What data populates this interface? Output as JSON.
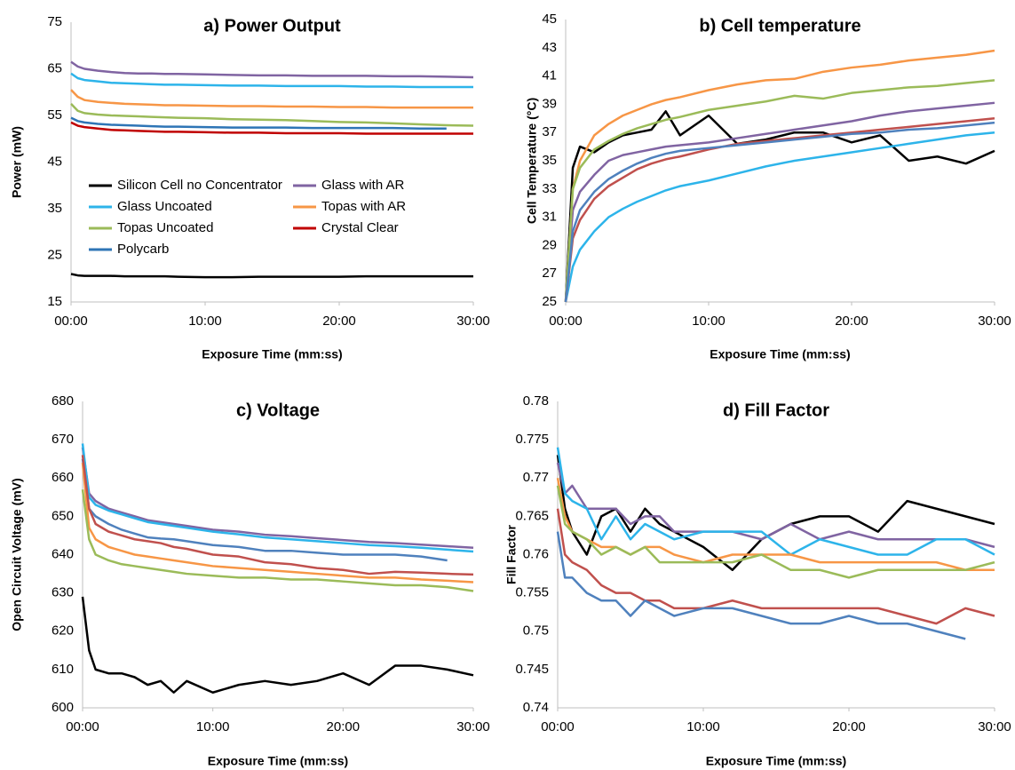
{
  "chart_data": [
    {
      "type": "line",
      "title": "a) Power Output",
      "x_label": "Exposure Time (mm:ss)",
      "y_label": "Power (mW)",
      "x": [
        0,
        0.5,
        1,
        2,
        3,
        4,
        5,
        6,
        7,
        8,
        10,
        12,
        14,
        16,
        18,
        20,
        22,
        24,
        26,
        28,
        30
      ],
      "xlim": [
        0,
        30
      ],
      "xticks": [
        {
          "value": 0,
          "label": "00:00"
        },
        {
          "value": 10,
          "label": "10:00"
        },
        {
          "value": 20,
          "label": "20:00"
        },
        {
          "value": 30,
          "label": "30:00"
        }
      ],
      "ylim": [
        15,
        75
      ],
      "yticks": [
        15,
        25,
        35,
        45,
        55,
        65,
        75
      ],
      "legend": "left",
      "series": [
        {
          "name": "Silicon Cell no Concentrator",
          "color": "#000000",
          "values": [
            21,
            20.7,
            20.6,
            20.6,
            20.6,
            20.5,
            20.5,
            20.5,
            20.5,
            20.4,
            20.3,
            20.3,
            20.4,
            20.4,
            20.4,
            20.4,
            20.5,
            20.5,
            20.5,
            20.5,
            20.5
          ]
        },
        {
          "name": "Glass with AR",
          "color": "#8064a2",
          "values": [
            66.5,
            65.5,
            65,
            64.6,
            64.3,
            64.1,
            64,
            64,
            63.9,
            63.9,
            63.8,
            63.7,
            63.6,
            63.6,
            63.5,
            63.5,
            63.5,
            63.4,
            63.4,
            63.3,
            63.2
          ]
        },
        {
          "name": "Glass Uncoated",
          "color": "#2db4ea",
          "values": [
            64,
            63,
            62.6,
            62.3,
            62,
            61.9,
            61.8,
            61.7,
            61.6,
            61.6,
            61.5,
            61.4,
            61.4,
            61.3,
            61.3,
            61.3,
            61.2,
            61.2,
            61.1,
            61.1,
            61.1
          ]
        },
        {
          "name": "Topas with AR",
          "color": "#f79646",
          "values": [
            60.5,
            59,
            58.3,
            57.9,
            57.7,
            57.5,
            57.4,
            57.3,
            57.2,
            57.2,
            57.1,
            57,
            57,
            56.9,
            56.9,
            56.8,
            56.8,
            56.7,
            56.7,
            56.7,
            56.7
          ]
        },
        {
          "name": "Topas Uncoated",
          "color": "#9bbb59",
          "values": [
            57.5,
            56,
            55.5,
            55.2,
            55,
            54.9,
            54.8,
            54.7,
            54.6,
            54.5,
            54.4,
            54.2,
            54.1,
            54,
            53.8,
            53.6,
            53.5,
            53.3,
            53.1,
            52.9,
            52.8
          ]
        },
        {
          "name": "Crystal Clear",
          "color": "#c00000",
          "values": [
            53.5,
            52.8,
            52.5,
            52.2,
            51.9,
            51.8,
            51.7,
            51.6,
            51.5,
            51.5,
            51.4,
            51.3,
            51.3,
            51.2,
            51.2,
            51.2,
            51.1,
            51.1,
            51.1,
            51.1,
            51.1
          ]
        },
        {
          "name": "Polycarb",
          "color": "#2e75b6",
          "values": [
            54.5,
            53.8,
            53.5,
            53.2,
            53,
            52.9,
            52.8,
            52.7,
            52.6,
            52.6,
            52.5,
            52.4,
            52.4,
            52.4,
            52.3,
            52.3,
            52.3,
            52.3,
            52.2,
            52.2,
            null
          ]
        }
      ]
    },
    {
      "type": "line",
      "title": "b) Cell temperature",
      "x_label": "Exposure Time (mm:ss)",
      "y_label": "Cell Temperature  (°C)",
      "x": [
        0,
        0.5,
        1,
        2,
        3,
        4,
        5,
        6,
        7,
        8,
        10,
        12,
        14,
        16,
        18,
        20,
        22,
        24,
        26,
        28,
        30
      ],
      "xlim": [
        0,
        30
      ],
      "xticks": [
        {
          "value": 0,
          "label": "00:00"
        },
        {
          "value": 10,
          "label": "10:00"
        },
        {
          "value": 20,
          "label": "20:00"
        },
        {
          "value": 30,
          "label": "30:00"
        }
      ],
      "ylim": [
        25,
        45
      ],
      "yticks": [
        25,
        27,
        29,
        31,
        33,
        35,
        37,
        39,
        41,
        43,
        45
      ],
      "series": [
        {
          "color": "#000000",
          "values": [
            25,
            34.5,
            36,
            35.6,
            36.3,
            36.8,
            37,
            37.2,
            38.5,
            36.8,
            38.2,
            36.2,
            36.5,
            37,
            37,
            36.3,
            36.8,
            35,
            35.3,
            34.8,
            35.7
          ]
        },
        {
          "color": "#8064a2",
          "values": [
            25,
            31.5,
            32.8,
            34,
            35,
            35.4,
            35.6,
            35.8,
            36,
            36.1,
            36.3,
            36.6,
            36.9,
            37.2,
            37.5,
            37.8,
            38.2,
            38.5,
            38.7,
            38.9,
            39.1
          ]
        },
        {
          "color": "#2db4ea",
          "values": [
            25,
            27.5,
            28.7,
            30,
            31,
            31.6,
            32.1,
            32.5,
            32.9,
            33.2,
            33.6,
            34.1,
            34.6,
            35,
            35.3,
            35.6,
            35.9,
            36.2,
            36.5,
            36.8,
            37
          ]
        },
        {
          "color": "#f79646",
          "values": [
            25,
            33,
            35,
            36.8,
            37.6,
            38.2,
            38.6,
            39,
            39.3,
            39.5,
            40,
            40.4,
            40.7,
            40.8,
            41.3,
            41.6,
            41.8,
            42.1,
            42.3,
            42.5,
            42.8
          ]
        },
        {
          "color": "#9bbb59",
          "values": [
            25,
            33,
            34.5,
            35.8,
            36.4,
            36.9,
            37.3,
            37.6,
            37.9,
            38.1,
            38.6,
            38.9,
            39.2,
            39.6,
            39.4,
            39.8,
            40,
            40.2,
            40.3,
            40.5,
            40.7
          ]
        },
        {
          "color": "#c0504d",
          "values": [
            25,
            29.5,
            30.8,
            32.3,
            33.2,
            33.8,
            34.4,
            34.8,
            35.1,
            35.3,
            35.8,
            36.2,
            36.4,
            36.6,
            36.8,
            37,
            37.2,
            37.4,
            37.6,
            37.8,
            38
          ]
        },
        {
          "color": "#4f81bd",
          "values": [
            25,
            30,
            31.5,
            32.8,
            33.7,
            34.3,
            34.8,
            35.2,
            35.5,
            35.7,
            35.9,
            36.1,
            36.3,
            36.5,
            36.7,
            36.9,
            37,
            37.2,
            37.3,
            37.5,
            37.7
          ]
        }
      ]
    },
    {
      "type": "line",
      "title": "c) Voltage",
      "x_label": "Exposure Time (mm:ss)",
      "y_label": "Open Circuit Voltage (mV)",
      "x": [
        0,
        0.5,
        1,
        2,
        3,
        4,
        5,
        6,
        7,
        8,
        10,
        12,
        14,
        16,
        18,
        20,
        22,
        24,
        26,
        28,
        30
      ],
      "xlim": [
        0,
        30
      ],
      "xticks": [
        {
          "value": 0,
          "label": "00:00"
        },
        {
          "value": 10,
          "label": "10:00"
        },
        {
          "value": 20,
          "label": "20:00"
        },
        {
          "value": 30,
          "label": "30:00"
        }
      ],
      "ylim": [
        600,
        680
      ],
      "yticks": [
        600,
        610,
        620,
        630,
        640,
        650,
        660,
        670,
        680
      ],
      "series": [
        {
          "color": "#000000",
          "values": [
            629,
            615,
            610,
            609,
            609,
            608,
            606,
            607,
            604,
            607,
            604,
            606,
            607,
            606,
            607,
            609,
            606,
            611,
            611,
            610,
            608.5
          ]
        },
        {
          "color": "#8064a2",
          "values": [
            668,
            656,
            654,
            652,
            651,
            650,
            649,
            648.5,
            648,
            647.5,
            646.5,
            646,
            645.2,
            644.8,
            644.3,
            643.8,
            643.3,
            643,
            642.6,
            642.2,
            641.8
          ]
        },
        {
          "color": "#2db4ea",
          "values": [
            669,
            655,
            653,
            651.5,
            650.5,
            649.5,
            648.5,
            648,
            647.5,
            647,
            646,
            645.3,
            644.5,
            644,
            643.5,
            643,
            642.5,
            642.2,
            641.8,
            641.3,
            640.8
          ]
        },
        {
          "color": "#4f81bd",
          "values": [
            665,
            652,
            650,
            648,
            646.5,
            645.5,
            644.5,
            644.2,
            644,
            643.5,
            642.5,
            642,
            641,
            641,
            640.5,
            640,
            640,
            640,
            639.5,
            638.5,
            null
          ]
        },
        {
          "color": "#f79646",
          "values": [
            664,
            647,
            644,
            642,
            641,
            640,
            639.5,
            639,
            638.5,
            638,
            637,
            636.5,
            636,
            635.5,
            635,
            634.5,
            634,
            634,
            633.5,
            633.2,
            632.8
          ]
        },
        {
          "color": "#c0504d",
          "values": [
            666,
            652,
            648,
            646,
            645,
            644,
            643.5,
            643,
            642,
            641.5,
            640,
            639.5,
            638,
            637.5,
            636.5,
            636,
            635,
            635.5,
            635.3,
            635,
            634.8
          ]
        },
        {
          "color": "#9bbb59",
          "values": [
            657,
            644,
            640,
            638.5,
            637.5,
            637,
            636.5,
            636,
            635.5,
            635,
            634.5,
            634,
            634,
            633.5,
            633.5,
            633,
            632.5,
            632,
            632,
            631.5,
            630.5
          ]
        }
      ]
    },
    {
      "type": "line",
      "title": "d) Fill Factor",
      "x_label": "Exposure Time (mm:ss)",
      "y_label": "Fill Factor",
      "x": [
        0,
        0.5,
        1,
        2,
        3,
        4,
        5,
        6,
        7,
        8,
        10,
        12,
        14,
        16,
        18,
        20,
        22,
        24,
        26,
        28,
        30
      ],
      "xlim": [
        0,
        30
      ],
      "xticks": [
        {
          "value": 0,
          "label": "00:00"
        },
        {
          "value": 10,
          "label": "10:00"
        },
        {
          "value": 20,
          "label": "20:00"
        },
        {
          "value": 30,
          "label": "30:00"
        }
      ],
      "ylim": [
        0.74,
        0.78
      ],
      "yticks": [
        0.74,
        0.745,
        0.75,
        0.755,
        0.76,
        0.765,
        0.77,
        0.775,
        0.78
      ],
      "series": [
        {
          "color": "#000000",
          "values": [
            0.773,
            0.766,
            0.763,
            0.76,
            0.765,
            0.766,
            0.763,
            0.766,
            0.764,
            0.763,
            0.761,
            0.758,
            0.762,
            0.764,
            0.765,
            0.765,
            0.763,
            0.767,
            0.766,
            0.765,
            0.764
          ]
        },
        {
          "color": "#8064a2",
          "values": [
            0.772,
            0.768,
            0.769,
            0.766,
            0.766,
            0.766,
            0.764,
            0.765,
            0.765,
            0.763,
            0.763,
            0.763,
            0.762,
            0.764,
            0.762,
            0.763,
            0.762,
            0.762,
            0.762,
            0.762,
            0.761
          ]
        },
        {
          "color": "#2db4ea",
          "values": [
            0.774,
            0.768,
            0.767,
            0.766,
            0.762,
            0.765,
            0.762,
            0.764,
            0.763,
            0.762,
            0.763,
            0.763,
            0.763,
            0.76,
            0.762,
            0.761,
            0.76,
            0.76,
            0.762,
            0.762,
            0.76
          ]
        },
        {
          "color": "#f79646",
          "values": [
            0.77,
            0.765,
            0.763,
            0.762,
            0.761,
            0.761,
            0.76,
            0.761,
            0.761,
            0.76,
            0.759,
            0.76,
            0.76,
            0.76,
            0.759,
            0.759,
            0.759,
            0.759,
            0.759,
            0.758,
            0.758
          ]
        },
        {
          "color": "#9bbb59",
          "values": [
            0.769,
            0.764,
            0.763,
            0.762,
            0.76,
            0.761,
            0.76,
            0.761,
            0.759,
            0.759,
            0.759,
            0.759,
            0.76,
            0.758,
            0.758,
            0.757,
            0.758,
            0.758,
            0.758,
            0.758,
            0.759
          ]
        },
        {
          "color": "#c0504d",
          "values": [
            0.766,
            0.76,
            0.759,
            0.758,
            0.756,
            0.755,
            0.755,
            0.754,
            0.754,
            0.753,
            0.753,
            0.754,
            0.753,
            0.753,
            0.753,
            0.753,
            0.753,
            0.752,
            0.751,
            0.753,
            0.752
          ]
        },
        {
          "color": "#4f81bd",
          "values": [
            0.763,
            0.757,
            0.757,
            0.755,
            0.754,
            0.754,
            0.752,
            0.754,
            0.753,
            0.752,
            0.753,
            0.753,
            0.752,
            0.751,
            0.751,
            0.752,
            0.751,
            0.751,
            0.75,
            0.749,
            null
          ]
        }
      ]
    }
  ]
}
